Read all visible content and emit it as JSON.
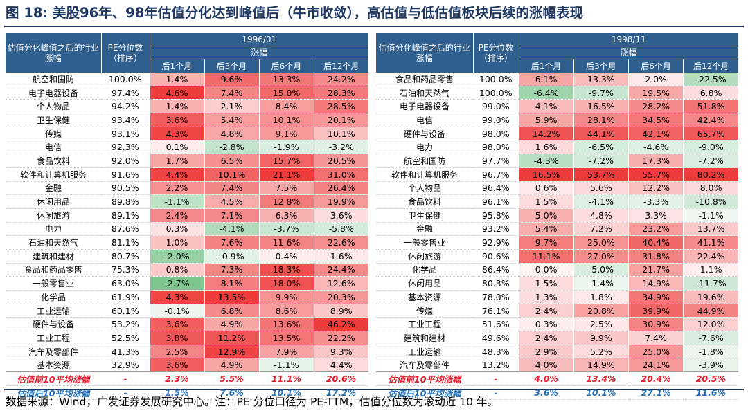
{
  "figure": {
    "title": "图 18: 美股96年、98年估值分化达到峰值后（牛市收敛），高估值与低估值板块后续的涨幅表现",
    "source_note": "数据来源：Wind，广发证券发展研究中心。注：PE 分位口径为 PE-TTM，估值分位数为滚动近 10 年。"
  },
  "colors": {
    "header_bg": "#2f5f8f",
    "title_color": "#1f3864",
    "positive_max": "#ee3b3b",
    "negative_max": "#3aa655",
    "avg_top_text": "#e0192b",
    "avg_bottom_text": "#1f6fb8"
  },
  "panels": [
    {
      "date": "1996/01",
      "industry_header": "估值分化峰值之后的行业涨幅",
      "pe_header": "PE分位数（排序）",
      "return_header": "涨幅",
      "period_headers": [
        "后1个月",
        "后3个月",
        "后6个月",
        "后12个月"
      ],
      "rows": [
        {
          "industry": "航空和国防",
          "pe": "100.0%",
          "r": [
            "1.4%",
            "9.6%",
            "13.3%",
            "24.2%"
          ]
        },
        {
          "industry": "电子电器设备",
          "pe": "97.4%",
          "r": [
            "4.6%",
            "7.4%",
            "15.0%",
            "28.3%"
          ]
        },
        {
          "industry": "个人物品",
          "pe": "94.2%",
          "r": [
            "1.4%",
            "2.1%",
            "8.4%",
            "28.5%"
          ]
        },
        {
          "industry": "卫生保健",
          "pe": "93.4%",
          "r": [
            "3.6%",
            "5.4%",
            "10.1%",
            "20.1%"
          ]
        },
        {
          "industry": "传媒",
          "pe": "93.1%",
          "r": [
            "4.3%",
            "4.8%",
            "9.1%",
            "10.1%"
          ]
        },
        {
          "industry": "电信",
          "pe": "92.3%",
          "r": [
            "0.1%",
            "-2.8%",
            "-1.9%",
            "-3.2%"
          ]
        },
        {
          "industry": "食品饮料",
          "pe": "92.0%",
          "r": [
            "1.7%",
            "6.5%",
            "15.7%",
            "20.5%"
          ]
        },
        {
          "industry": "软件和计算机服务",
          "pe": "91.6%",
          "r": [
            "4.4%",
            "10.1%",
            "21.1%",
            "31.0%"
          ]
        },
        {
          "industry": "金融",
          "pe": "90.5%",
          "r": [
            "2.2%",
            "7.4%",
            "7.5%",
            "26.4%"
          ]
        },
        {
          "industry": "休闲用品",
          "pe": "89.8%",
          "r": [
            "-1.1%",
            "4.5%",
            "12.8%",
            "19.9%"
          ]
        },
        {
          "industry": "休闲旅游",
          "pe": "89.1%",
          "r": [
            "2.4%",
            "7.1%",
            "6.3%",
            "3.6%"
          ]
        },
        {
          "industry": "电力",
          "pe": "87.6%",
          "r": [
            "0.3%",
            "-4.1%",
            "-3.7%",
            "-5.8%"
          ]
        },
        {
          "industry": "石油和天然气",
          "pe": "81.1%",
          "r": [
            "1.0%",
            "7.6%",
            "11.6%",
            "22.6%"
          ]
        },
        {
          "industry": "建筑和建材",
          "pe": "80.7%",
          "r": [
            "-2.0%",
            "-0.9%",
            "0.4%",
            "1.6%"
          ]
        },
        {
          "industry": "食品和药品零售",
          "pe": "75.3%",
          "r": [
            "0.8%",
            "7.3%",
            "18.3%",
            "24.4%"
          ]
        },
        {
          "industry": "一般零售业",
          "pe": "63.0%",
          "r": [
            "-2.7%",
            "8.1%",
            "18.0%",
            "12.6%"
          ]
        },
        {
          "industry": "化学品",
          "pe": "61.9%",
          "r": [
            "4.3%",
            "13.5%",
            "9.9%",
            "20.3%"
          ]
        },
        {
          "industry": "工业运输",
          "pe": "60.1%",
          "r": [
            "-0.1%",
            "6.8%",
            "8.6%",
            "8.9%"
          ]
        },
        {
          "industry": "硬件与设备",
          "pe": "53.2%",
          "r": [
            "3.6%",
            "4.9%",
            "13.6%",
            "46.2%"
          ]
        },
        {
          "industry": "工业工程",
          "pe": "52.5%",
          "r": [
            "3.8%",
            "11.2%",
            "13.5%",
            "22.2%"
          ]
        },
        {
          "industry": "汽车及零部件",
          "pe": "41.3%",
          "r": [
            "2.5%",
            "12.9%",
            "7.9%",
            "9.3%"
          ]
        },
        {
          "industry": "基本资源",
          "pe": "32.9%",
          "r": [
            "3.6%",
            "4.9%",
            "-1.1%",
            "4.4%"
          ]
        }
      ],
      "avg_rows": [
        {
          "label": "估值前10平均涨幅",
          "pe": "-",
          "r": [
            "2.3%",
            "5.5%",
            "11.1%",
            "20.6%"
          ]
        },
        {
          "label": "估值后10平均涨幅",
          "pe": "-",
          "r": [
            "1.5%",
            "7.6%",
            "10.1%",
            "17.2%"
          ]
        }
      ]
    },
    {
      "date": "1998/11",
      "industry_header": "估值分化峰值之后的行业涨幅",
      "pe_header": "PE分位数（排序）",
      "return_header": "涨幅",
      "period_headers": [
        "后1个月",
        "后3个月",
        "后6个月",
        "后12个月"
      ],
      "rows": [
        {
          "industry": "食品和药品零售",
          "pe": "100.0%",
          "r": [
            "6.1%",
            "13.3%",
            "2.0%",
            "-22.5%"
          ]
        },
        {
          "industry": "石油和天然气",
          "pe": "100.0%",
          "r": [
            "-6.4%",
            "-9.7%",
            "19.5%",
            "6.8%"
          ]
        },
        {
          "industry": "电子电器设备",
          "pe": "99.0%",
          "r": [
            "4.1%",
            "16.5%",
            "28.2%",
            "51.8%"
          ]
        },
        {
          "industry": "电信",
          "pe": "99.0%",
          "r": [
            "5.9%",
            "28.1%",
            "34.5%",
            "42.4%"
          ]
        },
        {
          "industry": "硬件与设备",
          "pe": "98.0%",
          "r": [
            "14.2%",
            "44.1%",
            "42.1%",
            "65.7%"
          ]
        },
        {
          "industry": "电力",
          "pe": "98.0%",
          "r": [
            "1.6%",
            "-6.5%",
            "-4.6%",
            "-9.0%"
          ]
        },
        {
          "industry": "航空和国防",
          "pe": "97.7%",
          "r": [
            "-4.3%",
            "-7.2%",
            "17.3%",
            "-7.2%"
          ]
        },
        {
          "industry": "软件和计算机服务",
          "pe": "96.7%",
          "r": [
            "16.5%",
            "53.7%",
            "55.7%",
            "80.2%"
          ]
        },
        {
          "industry": "个人物品",
          "pe": "96.4%",
          "r": [
            "0.6%",
            "5.6%",
            "12.2%",
            "8.0%"
          ]
        },
        {
          "industry": "食品饮料",
          "pe": "96.1%",
          "r": [
            "1.5%",
            "-4.1%",
            "-3.3%",
            "-10.8%"
          ]
        },
        {
          "industry": "卫生保健",
          "pe": "95.8%",
          "r": [
            "5.0%",
            "4.8%",
            "3.3%",
            "-1.1%"
          ]
        },
        {
          "industry": "金融",
          "pe": "93.2%",
          "r": [
            "5.4%",
            "7.2%",
            "23.2%",
            "13.7%"
          ]
        },
        {
          "industry": "一般零售业",
          "pe": "92.9%",
          "r": [
            "9.7%",
            "25.0%",
            "40.4%",
            "41.1%"
          ]
        },
        {
          "industry": "休闲旅游",
          "pe": "90.6%",
          "r": [
            "11.1%",
            "27.0%",
            "31.8%",
            "22.4%"
          ]
        },
        {
          "industry": "化学品",
          "pe": "86.4%",
          "r": [
            "0.0%",
            "-5.0%",
            "21.7%",
            "1.1%"
          ]
        },
        {
          "industry": "休闲用品",
          "pe": "80.3%",
          "r": [
            "1.5%",
            "-1.4%",
            "14.9%",
            "-11.7%"
          ]
        },
        {
          "industry": "基本资源",
          "pe": "78.0%",
          "r": [
            "1.3%",
            "1.8%",
            "34.9%",
            "19.6%"
          ]
        },
        {
          "industry": "传媒",
          "pe": "76.1%",
          "r": [
            "2.4%",
            "20.8%",
            "39.9%",
            "44.9%"
          ]
        },
        {
          "industry": "工业工程",
          "pe": "51.6%",
          "r": [
            "0.3%",
            "2.5%",
            "30.9%",
            "12.0%"
          ]
        },
        {
          "industry": "建筑和建材",
          "pe": "49.6%",
          "r": [
            "2.4%",
            "9.9%",
            "7.4%",
            "-7.6%"
          ]
        },
        {
          "industry": "工业运输",
          "pe": "48.3%",
          "r": [
            "2.9%",
            "5.2%",
            "25.0%",
            "-1.8%"
          ]
        },
        {
          "industry": "汽车及零部件",
          "pe": "13.2%",
          "r": [
            "4.0%",
            "14.9%",
            "24.1%",
            "-3.9%"
          ]
        }
      ],
      "avg_rows": [
        {
          "label": "估值前10平均涨幅",
          "pe": "-",
          "r": [
            "4.0%",
            "13.4%",
            "20.4%",
            "20.5%"
          ]
        },
        {
          "label": "估值后10平均涨幅",
          "pe": "-",
          "r": [
            "3.6%",
            "10.1%",
            "27.1%",
            "11.6%"
          ]
        }
      ]
    }
  ]
}
